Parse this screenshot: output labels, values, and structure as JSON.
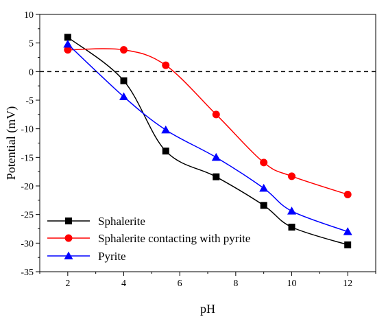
{
  "chart_data": {
    "type": "line",
    "xlabel": "pH",
    "ylabel": "Potential (mV)",
    "xlim": [
      1,
      13
    ],
    "ylim": [
      -35,
      10
    ],
    "xticks": [
      2,
      4,
      6,
      8,
      10,
      12
    ],
    "yticks": [
      10,
      5,
      0,
      -5,
      -10,
      -15,
      -20,
      -25,
      -30,
      -35
    ],
    "reference_line": {
      "y": 0,
      "style": "dashed",
      "color": "#000000"
    },
    "grid": false,
    "legend_position": "bottom-left",
    "series": [
      {
        "name": "Sphalerite",
        "marker": "square",
        "color": "#000000",
        "x": [
          2,
          4,
          5.5,
          7.3,
          9,
          10,
          12
        ],
        "y": [
          6.0,
          -1.6,
          -13.9,
          -18.4,
          -23.4,
          -27.2,
          -30.3
        ]
      },
      {
        "name": "Sphalerite contacting with pyrite",
        "marker": "circle",
        "color": "#ff0000",
        "x": [
          2,
          4,
          5.5,
          7.3,
          9,
          10,
          12
        ],
        "y": [
          3.8,
          3.8,
          1.1,
          -7.5,
          -15.9,
          -18.3,
          -21.5
        ]
      },
      {
        "name": "Pyrite",
        "marker": "triangle",
        "color": "#0000ff",
        "x": [
          2,
          4,
          5.5,
          7.3,
          9,
          10,
          12
        ],
        "y": [
          4.8,
          -4.4,
          -10.2,
          -15.0,
          -20.4,
          -24.4,
          -28.0
        ]
      }
    ]
  }
}
